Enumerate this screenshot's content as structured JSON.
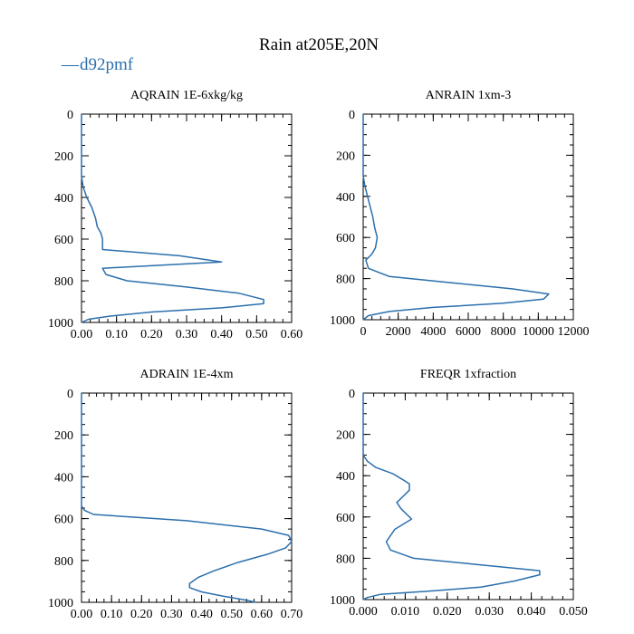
{
  "figure": {
    "title": "Rain at205E,20N"
  },
  "legend": {
    "marker": "—",
    "label": "d92pmf",
    "color": "#2b6fad"
  },
  "chart_data": [
    {
      "type": "line",
      "title": "AQRAIN  1E-6xkg/kg",
      "series_name": "d92pmf",
      "color": "#2b6fad",
      "xlim": [
        0,
        0.6
      ],
      "ylim": [
        1000,
        0
      ],
      "xticks": [
        0,
        0.1,
        0.2,
        0.3,
        0.4,
        0.5,
        0.6
      ],
      "xtick_labels": [
        "0.00",
        "0.10",
        "0.20",
        "0.30",
        "0.40",
        "0.50",
        "0.60"
      ],
      "xminor": 0.025,
      "yticks": [
        0,
        200,
        400,
        600,
        800,
        1000
      ],
      "ytick_labels": [
        "0",
        "200",
        "400",
        "600",
        "800",
        "1000"
      ],
      "yminor": 50,
      "points": [
        [
          0,
          0
        ],
        [
          0,
          300
        ],
        [
          0.005,
          350
        ],
        [
          0.015,
          400
        ],
        [
          0.03,
          450
        ],
        [
          0.04,
          500
        ],
        [
          0.045,
          540
        ],
        [
          0.055,
          570
        ],
        [
          0.06,
          600
        ],
        [
          0.06,
          650
        ],
        [
          0.28,
          680
        ],
        [
          0.4,
          710
        ],
        [
          0.06,
          740
        ],
        [
          0.07,
          770
        ],
        [
          0.13,
          800
        ],
        [
          0.3,
          830
        ],
        [
          0.45,
          860
        ],
        [
          0.52,
          890
        ],
        [
          0.52,
          910
        ],
        [
          0.4,
          930
        ],
        [
          0.2,
          950
        ],
        [
          0.08,
          970
        ],
        [
          0.02,
          985
        ],
        [
          0,
          1000
        ]
      ]
    },
    {
      "type": "line",
      "title": "ANRAIN  1xm-3",
      "series_name": "d92pmf",
      "color": "#2b6fad",
      "xlim": [
        0,
        12000
      ],
      "ylim": [
        1000,
        0
      ],
      "xticks": [
        0,
        2000,
        4000,
        6000,
        8000,
        10000,
        12000
      ],
      "xtick_labels": [
        "0",
        "2000",
        "4000",
        "6000",
        "8000",
        "10000",
        "12000"
      ],
      "xminor": 500,
      "yticks": [
        0,
        200,
        400,
        600,
        800,
        1000
      ],
      "ytick_labels": [
        "0",
        "200",
        "400",
        "600",
        "800",
        "1000"
      ],
      "yminor": 50,
      "points": [
        [
          0,
          0
        ],
        [
          0,
          300
        ],
        [
          100,
          350
        ],
        [
          250,
          400
        ],
        [
          400,
          450
        ],
        [
          550,
          500
        ],
        [
          650,
          550
        ],
        [
          800,
          600
        ],
        [
          700,
          650
        ],
        [
          500,
          680
        ],
        [
          150,
          710
        ],
        [
          300,
          750
        ],
        [
          1500,
          790
        ],
        [
          5000,
          820
        ],
        [
          8500,
          850
        ],
        [
          10600,
          875
        ],
        [
          10300,
          900
        ],
        [
          8000,
          920
        ],
        [
          4000,
          940
        ],
        [
          1500,
          960
        ],
        [
          300,
          980
        ],
        [
          0,
          1000
        ]
      ]
    },
    {
      "type": "line",
      "title": "ADRAIN  1E-4xm",
      "series_name": "d92pmf",
      "color": "#2b6fad",
      "xlim": [
        0,
        0.7
      ],
      "ylim": [
        1000,
        0
      ],
      "xticks": [
        0,
        0.1,
        0.2,
        0.3,
        0.4,
        0.5,
        0.6,
        0.7
      ],
      "xtick_labels": [
        "0.00",
        "0.10",
        "0.20",
        "0.30",
        "0.40",
        "0.50",
        "0.60",
        "0.70"
      ],
      "xminor": 0.025,
      "yticks": [
        0,
        200,
        400,
        600,
        800,
        1000
      ],
      "ytick_labels": [
        "0",
        "200",
        "400",
        "600",
        "800",
        "1000"
      ],
      "yminor": 50,
      "points": [
        [
          0,
          0
        ],
        [
          0,
          540
        ],
        [
          0.01,
          560
        ],
        [
          0.04,
          580
        ],
        [
          0.35,
          610
        ],
        [
          0.6,
          650
        ],
        [
          0.69,
          680
        ],
        [
          0.7,
          710
        ],
        [
          0.68,
          740
        ],
        [
          0.62,
          770
        ],
        [
          0.52,
          810
        ],
        [
          0.44,
          850
        ],
        [
          0.39,
          880
        ],
        [
          0.36,
          910
        ],
        [
          0.36,
          930
        ],
        [
          0.4,
          950
        ],
        [
          0.47,
          970
        ],
        [
          0.55,
          990
        ],
        [
          0.58,
          1000
        ]
      ]
    },
    {
      "type": "line",
      "title": "FREQR  1xfraction",
      "series_name": "d92pmf",
      "color": "#2b6fad",
      "xlim": [
        0,
        0.05
      ],
      "ylim": [
        1000,
        0
      ],
      "xticks": [
        0,
        0.01,
        0.02,
        0.03,
        0.04,
        0.05
      ],
      "xtick_labels": [
        "0.000",
        "0.010",
        "0.020",
        "0.030",
        "0.040",
        "0.050"
      ],
      "xminor": 0.0025,
      "yticks": [
        0,
        200,
        400,
        600,
        800,
        1000
      ],
      "ytick_labels": [
        "0",
        "200",
        "400",
        "600",
        "800",
        "1000"
      ],
      "yminor": 50,
      "points": [
        [
          0,
          0
        ],
        [
          0,
          300
        ],
        [
          0.001,
          330
        ],
        [
          0.003,
          360
        ],
        [
          0.007,
          390
        ],
        [
          0.0095,
          420
        ],
        [
          0.011,
          440
        ],
        [
          0.011,
          470
        ],
        [
          0.0095,
          500
        ],
        [
          0.008,
          530
        ],
        [
          0.009,
          560
        ],
        [
          0.0115,
          610
        ],
        [
          0.0075,
          660
        ],
        [
          0.0065,
          690
        ],
        [
          0.0055,
          720
        ],
        [
          0.0065,
          760
        ],
        [
          0.012,
          800
        ],
        [
          0.027,
          830
        ],
        [
          0.042,
          860
        ],
        [
          0.042,
          880
        ],
        [
          0.036,
          910
        ],
        [
          0.028,
          940
        ],
        [
          0.015,
          960
        ],
        [
          0.004,
          975
        ],
        [
          0.001,
          990
        ],
        [
          0,
          1000
        ]
      ]
    }
  ]
}
